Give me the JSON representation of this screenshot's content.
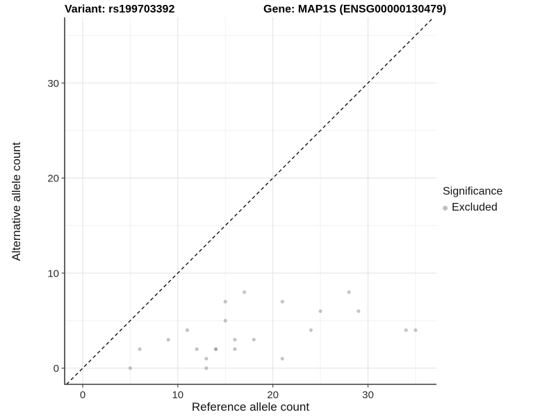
{
  "colors": {
    "background": "#ffffff",
    "grid_major": "#e3e3e3",
    "grid_minor": "#f1f1f1",
    "axis": "#3a3a3a",
    "tick_label": "#2b2b2b",
    "title": "#000000",
    "point": "#8a8a8a",
    "identity_line": "#000000"
  },
  "chart_data": {
    "type": "scatter",
    "variant_title": "Variant: rs199703392",
    "gene_title": "Gene: MAP1S (ENSG00000130479)",
    "xlabel": "Reference allele count",
    "ylabel": "Alternative allele count",
    "x_ticks": [
      0,
      10,
      20,
      30
    ],
    "y_ticks": [
      0,
      10,
      20,
      30
    ],
    "x_minor_ticks": [
      5,
      15,
      25,
      35
    ],
    "y_minor_ticks": [
      5,
      15,
      25,
      35
    ],
    "xlim": [
      -1.9,
      37.2
    ],
    "ylim": [
      -1.7,
      36.9
    ],
    "grid": "major+minor",
    "identity_line": {
      "style": "dashed",
      "label": "y = x"
    },
    "legend": {
      "title": "Significance",
      "position": "right",
      "items": [
        {
          "label": "Excluded",
          "color": "#8a8a8a"
        }
      ]
    },
    "series": [
      {
        "name": "Excluded",
        "marker": "circle",
        "radius": 2.6,
        "opacity": 0.5,
        "points": [
          [
            5,
            0
          ],
          [
            6,
            2
          ],
          [
            9,
            3
          ],
          [
            11,
            4
          ],
          [
            12,
            2
          ],
          [
            13,
            0
          ],
          [
            13,
            1
          ],
          [
            14,
            2
          ],
          [
            14,
            2
          ],
          [
            15,
            5
          ],
          [
            15,
            7
          ],
          [
            16,
            2
          ],
          [
            16,
            3
          ],
          [
            17,
            8
          ],
          [
            18,
            3
          ],
          [
            21,
            1
          ],
          [
            21,
            7
          ],
          [
            24,
            4
          ],
          [
            25,
            6
          ],
          [
            28,
            8
          ],
          [
            29,
            6
          ],
          [
            34,
            4
          ],
          [
            35,
            4
          ]
        ]
      }
    ]
  }
}
